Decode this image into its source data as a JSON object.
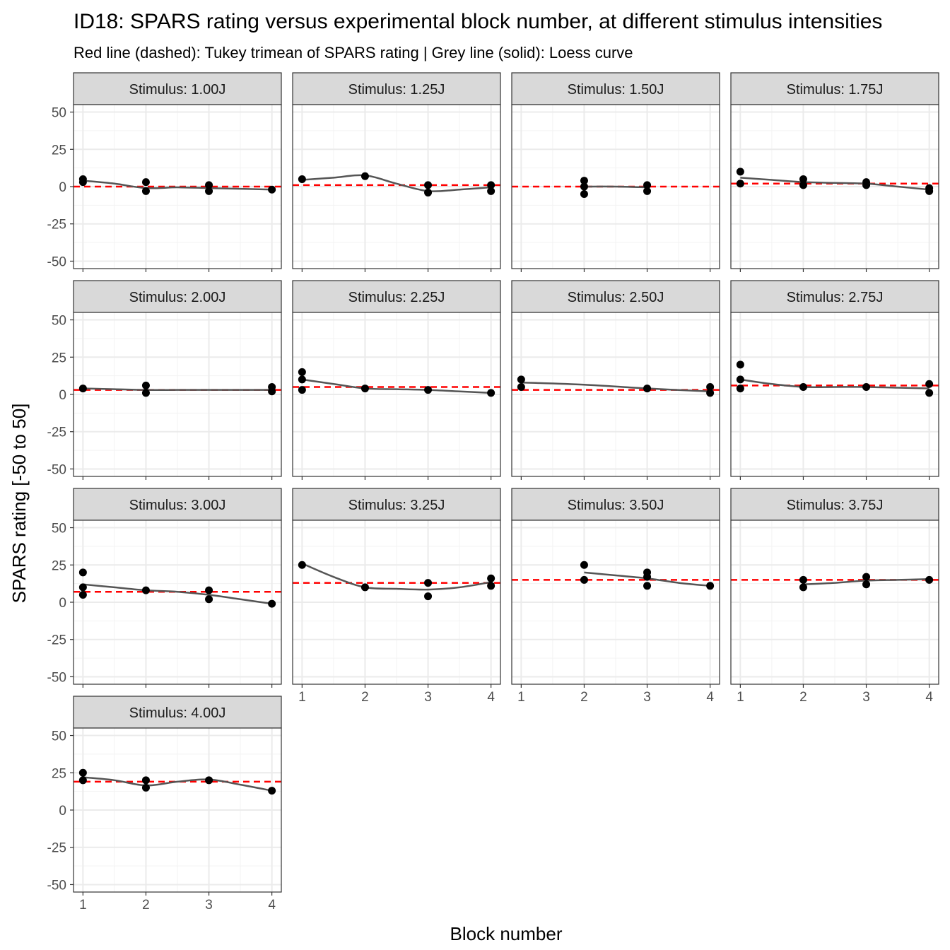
{
  "chart_data": {
    "type": "scatter",
    "title": "ID18: SPARS rating versus experimental block number, at different stimulus intensities",
    "subtitle": "Red line (dashed): Tukey trimean of SPARS rating | Grey line (solid): Loess curve",
    "xlabel": "Block number",
    "ylabel": "SPARS rating [-50 to 50]",
    "xlim": [
      0.85,
      4.15
    ],
    "ylim": [
      -55,
      55
    ],
    "x_ticks": [
      1,
      2,
      3,
      4
    ],
    "y_ticks": [
      -50,
      -25,
      0,
      25,
      50
    ],
    "grid": true,
    "colors": {
      "points": "#000000",
      "trimean": "#ff0000",
      "loess": "#555555",
      "strip_fill": "#d9d9d9",
      "grid": "#ebebeb"
    },
    "panels": [
      {
        "label": "Stimulus: 1.00J",
        "trimean": 0,
        "points": [
          [
            1,
            5
          ],
          [
            1,
            3
          ],
          [
            2,
            3
          ],
          [
            2,
            -3
          ],
          [
            3,
            1
          ],
          [
            3,
            -3
          ],
          [
            4,
            -2
          ]
        ],
        "loess": [
          [
            1,
            4
          ],
          [
            1.5,
            2
          ],
          [
            2,
            -1
          ],
          [
            2.5,
            -0.5
          ],
          [
            3,
            -1
          ],
          [
            3.5,
            -1.5
          ],
          [
            4,
            -2
          ]
        ]
      },
      {
        "label": "Stimulus: 1.25J",
        "trimean": 1,
        "points": [
          [
            1,
            5
          ],
          [
            2,
            7
          ],
          [
            3,
            1
          ],
          [
            3,
            -4
          ],
          [
            4,
            1
          ],
          [
            4,
            -3
          ]
        ],
        "loess": [
          [
            1,
            4.5
          ],
          [
            1.5,
            6
          ],
          [
            2,
            7.5
          ],
          [
            2.5,
            2
          ],
          [
            3,
            -3
          ],
          [
            3.5,
            -2
          ],
          [
            4,
            -0.5
          ]
        ]
      },
      {
        "label": "Stimulus: 1.50J",
        "trimean": 0,
        "points": [
          [
            2,
            4
          ],
          [
            2,
            0
          ],
          [
            2,
            -5
          ],
          [
            3,
            1
          ],
          [
            3,
            -3
          ]
        ],
        "loess": [
          [
            2,
            0
          ],
          [
            2.5,
            0
          ],
          [
            3,
            -0.5
          ]
        ]
      },
      {
        "label": "Stimulus: 1.75J",
        "trimean": 2,
        "points": [
          [
            1,
            10
          ],
          [
            1,
            2
          ],
          [
            2,
            5
          ],
          [
            2,
            1
          ],
          [
            3,
            3
          ],
          [
            3,
            1
          ],
          [
            4,
            -1
          ],
          [
            4,
            -3
          ]
        ],
        "loess": [
          [
            1,
            6
          ],
          [
            1.5,
            4.5
          ],
          [
            2,
            3
          ],
          [
            2.5,
            2.5
          ],
          [
            3,
            2
          ],
          [
            3.5,
            0
          ],
          [
            4,
            -2
          ]
        ]
      },
      {
        "label": "Stimulus: 2.00J",
        "trimean": 3,
        "points": [
          [
            1,
            4
          ],
          [
            2,
            6
          ],
          [
            2,
            1
          ],
          [
            4,
            5
          ],
          [
            4,
            2
          ]
        ],
        "loess": [
          [
            1,
            4
          ],
          [
            1.5,
            3.5
          ],
          [
            2,
            3
          ],
          [
            2.5,
            3
          ],
          [
            3,
            3
          ],
          [
            3.5,
            3
          ],
          [
            4,
            3
          ]
        ]
      },
      {
        "label": "Stimulus: 2.25J",
        "trimean": 5,
        "points": [
          [
            1,
            15
          ],
          [
            1,
            10
          ],
          [
            1,
            3
          ],
          [
            2,
            4
          ],
          [
            3,
            3
          ],
          [
            4,
            1
          ]
        ],
        "loess": [
          [
            1,
            10
          ],
          [
            1.5,
            7
          ],
          [
            2,
            4
          ],
          [
            2.5,
            3.5
          ],
          [
            3,
            3
          ],
          [
            3.5,
            2
          ],
          [
            4,
            1
          ]
        ]
      },
      {
        "label": "Stimulus: 2.50J",
        "trimean": 3,
        "points": [
          [
            1,
            10
          ],
          [
            1,
            5
          ],
          [
            3,
            4
          ],
          [
            4,
            5
          ],
          [
            4,
            1
          ]
        ],
        "loess": [
          [
            1,
            8
          ],
          [
            2,
            6.5
          ],
          [
            3,
            4
          ],
          [
            4,
            2
          ]
        ]
      },
      {
        "label": "Stimulus: 2.75J",
        "trimean": 6,
        "points": [
          [
            1,
            20
          ],
          [
            1,
            10
          ],
          [
            1,
            4
          ],
          [
            2,
            5
          ],
          [
            3,
            5
          ],
          [
            4,
            7
          ],
          [
            4,
            1
          ]
        ],
        "loess": [
          [
            1,
            10
          ],
          [
            1.5,
            7
          ],
          [
            2,
            5
          ],
          [
            2.5,
            5
          ],
          [
            3,
            5
          ],
          [
            3.5,
            4.5
          ],
          [
            4,
            4
          ]
        ]
      },
      {
        "label": "Stimulus: 3.00J",
        "trimean": 7,
        "points": [
          [
            1,
            20
          ],
          [
            1,
            10
          ],
          [
            1,
            5
          ],
          [
            2,
            8
          ],
          [
            3,
            8
          ],
          [
            3,
            2
          ],
          [
            4,
            -1
          ]
        ],
        "loess": [
          [
            1,
            12
          ],
          [
            1.5,
            10
          ],
          [
            2,
            8
          ],
          [
            2.5,
            7
          ],
          [
            3,
            5
          ],
          [
            3.5,
            2
          ],
          [
            4,
            -1
          ]
        ]
      },
      {
        "label": "Stimulus: 3.25J",
        "trimean": 13,
        "points": [
          [
            1,
            25
          ],
          [
            2,
            10
          ],
          [
            3,
            13
          ],
          [
            3,
            4
          ],
          [
            4,
            16
          ],
          [
            4,
            11
          ]
        ],
        "loess": [
          [
            1,
            26
          ],
          [
            1.5,
            17
          ],
          [
            2,
            10
          ],
          [
            2.5,
            9
          ],
          [
            3,
            8.5
          ],
          [
            3.5,
            10
          ],
          [
            4,
            13.5
          ]
        ]
      },
      {
        "label": "Stimulus: 3.50J",
        "trimean": 15,
        "points": [
          [
            2,
            25
          ],
          [
            2,
            15
          ],
          [
            3,
            20
          ],
          [
            3,
            17
          ],
          [
            3,
            11
          ],
          [
            4,
            11
          ]
        ],
        "loess": [
          [
            2,
            20
          ],
          [
            2.5,
            18
          ],
          [
            3,
            16
          ],
          [
            3.5,
            13
          ],
          [
            4,
            11
          ]
        ]
      },
      {
        "label": "Stimulus: 3.75J",
        "trimean": 15,
        "points": [
          [
            2,
            15
          ],
          [
            2,
            10
          ],
          [
            3,
            17
          ],
          [
            3,
            12
          ],
          [
            4,
            15
          ]
        ],
        "loess": [
          [
            2,
            12
          ],
          [
            2.5,
            13
          ],
          [
            3,
            14.5
          ],
          [
            3.5,
            15
          ],
          [
            4,
            15.5
          ]
        ]
      },
      {
        "label": "Stimulus: 4.00J",
        "trimean": 19,
        "points": [
          [
            1,
            25
          ],
          [
            1,
            20
          ],
          [
            2,
            20
          ],
          [
            2,
            15
          ],
          [
            3,
            20
          ],
          [
            4,
            13
          ]
        ],
        "loess": [
          [
            1,
            22
          ],
          [
            1.5,
            20
          ],
          [
            2,
            16.5
          ],
          [
            2.5,
            19
          ],
          [
            3,
            20.5
          ],
          [
            3.5,
            17
          ],
          [
            4,
            13
          ]
        ]
      }
    ]
  }
}
